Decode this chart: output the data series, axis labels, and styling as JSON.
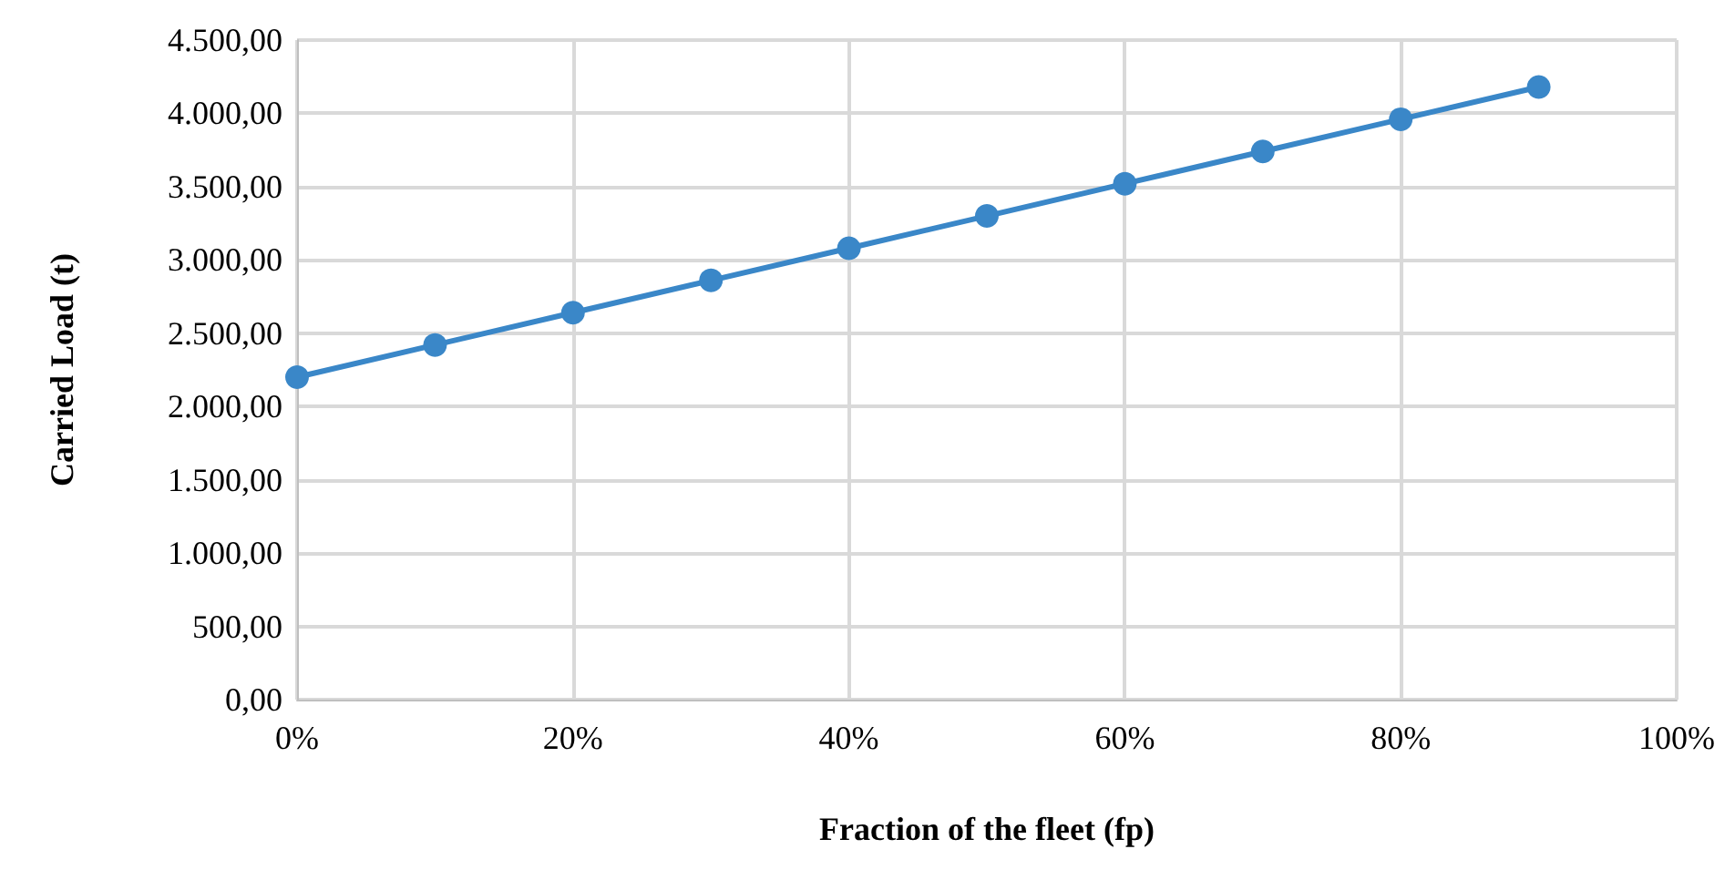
{
  "chart_data": {
    "type": "line",
    "xlabel": "Fraction of the fleet (fp)",
    "ylabel": "Carried Load (t)",
    "x": [
      0,
      10,
      20,
      30,
      40,
      50,
      60,
      70,
      80,
      90
    ],
    "series": [
      {
        "color": "#3a87c8",
        "values": [
          2200,
          2420,
          2640,
          2860,
          3080,
          3300,
          3520,
          3740,
          3960,
          4180
        ]
      }
    ],
    "xlim": [
      0,
      100
    ],
    "xticks": [
      {
        "value": 0,
        "label": "0%"
      },
      {
        "value": 20,
        "label": "20%"
      },
      {
        "value": 40,
        "label": "40%"
      },
      {
        "value": 60,
        "label": "60%"
      },
      {
        "value": 80,
        "label": "80%"
      },
      {
        "value": 100,
        "label": "100%"
      }
    ],
    "ylim": [
      0,
      4500
    ],
    "yticks": [
      {
        "value": 0,
        "label": "0,00"
      },
      {
        "value": 500,
        "label": "500,00"
      },
      {
        "value": 1000,
        "label": "1.000,00"
      },
      {
        "value": 1500,
        "label": "1.500,00"
      },
      {
        "value": 2000,
        "label": "2.000,00"
      },
      {
        "value": 2500,
        "label": "2.500,00"
      },
      {
        "value": 3000,
        "label": "3.000,00"
      },
      {
        "value": 3500,
        "label": "3.500,00"
      },
      {
        "value": 4000,
        "label": "4.000,00"
      },
      {
        "value": 4500,
        "label": "4.500,00"
      }
    ],
    "grid": true,
    "marker": "circle",
    "line_style": "solid"
  }
}
